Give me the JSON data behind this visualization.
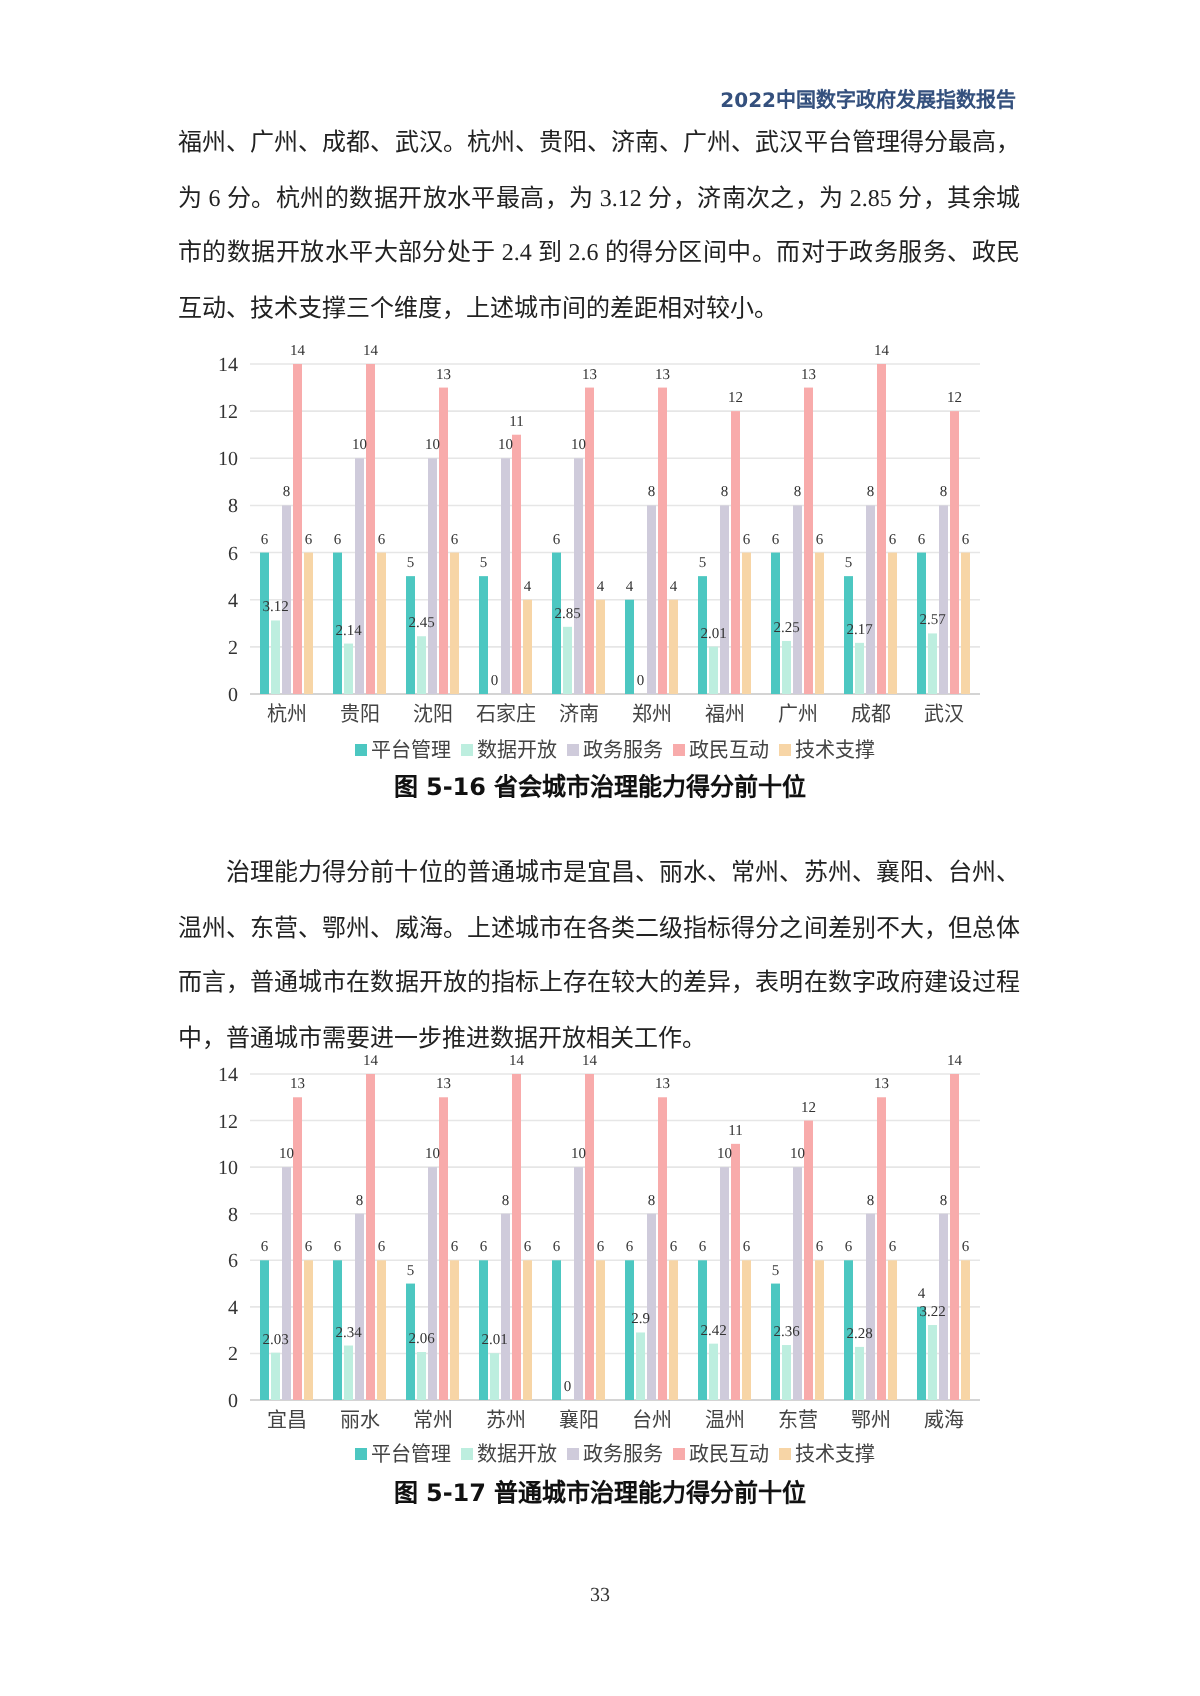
{
  "chart_data": [
    {
      "type": "bar",
      "title": "图 5-16 省会城市治理能力得分前十位",
      "annotations": [
        "2022中国数字政府发展指数报告",
        "福州、广州、成都、武汉。杭州、贵阳、济南、广州、武汉平台管理得分最高，为6分。杭州的数据开放水平最高，为3.12分，济南次之，为2.85分，其余城市的数据开放水平大部分处于2.4到2.6的得分区间中。而对于政务服务、政民互动、技术支撑三个维度，上述城市间的差距相对较小。"
      ],
      "categories": [
        "杭州",
        "贵阳",
        "沈阳",
        "石家庄",
        "济南",
        "郑州",
        "福州",
        "广州",
        "成都",
        "武汉"
      ],
      "series": [
        {
          "name": "平台管理",
          "color": "#4cc7c1",
          "values": [
            6,
            6,
            5,
            5,
            6,
            4,
            5,
            6,
            5,
            6
          ]
        },
        {
          "name": "数据开放",
          "color": "#bdeedf",
          "values": [
            3.12,
            2.14,
            2.45,
            0,
            2.85,
            0,
            2.01,
            2.25,
            2.17,
            2.57
          ]
        },
        {
          "name": "政务服务",
          "color": "#cfcbdb",
          "values": [
            8,
            10,
            10,
            10,
            10,
            8,
            8,
            8,
            8,
            8
          ]
        },
        {
          "name": "政民互动",
          "color": "#f8abab",
          "values": [
            14,
            14,
            13,
            11,
            13,
            13,
            12,
            13,
            14,
            12
          ]
        },
        {
          "name": "技术支撑",
          "color": "#f7d5a6",
          "values": [
            6,
            6,
            6,
            4,
            4,
            4,
            6,
            6,
            6,
            6
          ]
        }
      ],
      "ylim": [
        0,
        14
      ],
      "yticks": [
        0,
        2,
        4,
        6,
        8,
        10,
        12,
        14
      ],
      "grid": "y",
      "legend": "bottom",
      "data_labels": true
    },
    {
      "type": "bar",
      "title": "图 5-17 普通城市治理能力得分前十位",
      "annotations": [
        "治理能力得分前十位的普通城市是宜昌、丽水、常州、苏州、襄阳、台州、温州、东营、鄂州、威海。上述城市在各类二级指标得分之间差别不大，但总体而言，普通城市在数据开放的指标上存在较大的差异，表明在数字政府建设过程中，普通城市需要进一步推进数据开放相关工作。",
        "33"
      ],
      "categories": [
        "宜昌",
        "丽水",
        "常州",
        "苏州",
        "襄阳",
        "台州",
        "温州",
        "东营",
        "鄂州",
        "威海"
      ],
      "series": [
        {
          "name": "平台管理",
          "color": "#4cc7c1",
          "values": [
            6,
            6,
            5,
            6,
            6,
            6,
            6,
            5,
            6,
            4
          ]
        },
        {
          "name": "数据开放",
          "color": "#bdeedf",
          "values": [
            2.03,
            2.34,
            2.06,
            2.01,
            0,
            2.9,
            2.42,
            2.36,
            2.28,
            3.22
          ]
        },
        {
          "name": "政务服务",
          "color": "#cfcbdb",
          "values": [
            10,
            8,
            10,
            8,
            10,
            8,
            10,
            10,
            8,
            8
          ]
        },
        {
          "name": "政民互动",
          "color": "#f8abab",
          "values": [
            13,
            14,
            13,
            14,
            14,
            13,
            11,
            12,
            13,
            14
          ]
        },
        {
          "name": "技术支撑",
          "color": "#f7d5a6",
          "values": [
            6,
            6,
            6,
            6,
            6,
            6,
            6,
            6,
            6,
            6
          ]
        }
      ],
      "ylim": [
        0,
        14
      ],
      "yticks": [
        0,
        2,
        4,
        6,
        8,
        10,
        12,
        14
      ],
      "grid": "y",
      "legend": "bottom",
      "data_labels": true
    }
  ]
}
